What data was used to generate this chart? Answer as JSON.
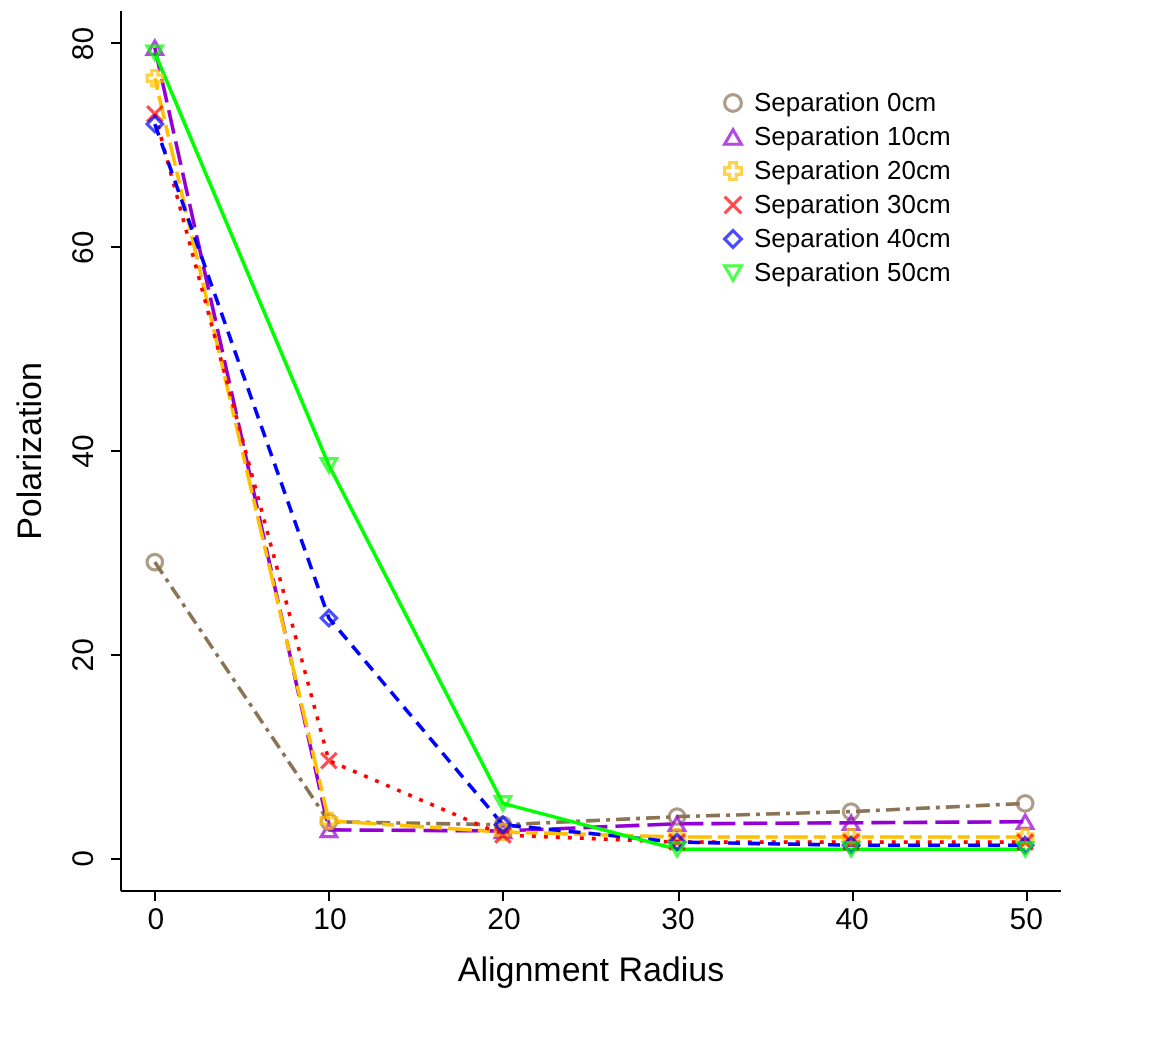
{
  "chart_data": {
    "type": "line",
    "xlabel": "Alignment Radius",
    "ylabel": "Polarization",
    "x": [
      0,
      10,
      20,
      30,
      40,
      50
    ],
    "series": [
      {
        "name": "Separation 0cm",
        "color": "#8b7355",
        "marker": "circle",
        "line_style": "dashdot",
        "values": [
          29,
          3.5,
          3.2,
          4,
          4.5,
          5.3
        ]
      },
      {
        "name": "Separation 10cm",
        "color": "#9400d3",
        "marker": "triangle",
        "line_style": "longdash",
        "values": [
          79.5,
          2.7,
          2.6,
          3.3,
          3.4,
          3.5
        ]
      },
      {
        "name": "Separation 20cm",
        "color": "#ffc000",
        "marker": "plus",
        "line_style": "twodash",
        "values": [
          76.5,
          3.6,
          2.5,
          2,
          2,
          2
        ]
      },
      {
        "name": "Separation 30cm",
        "color": "#ff0000",
        "marker": "x",
        "line_style": "dotted",
        "values": [
          73,
          9.5,
          2.2,
          1.5,
          1.5,
          1.5
        ]
      },
      {
        "name": "Separation 40cm",
        "color": "#0000ff",
        "marker": "diamond",
        "line_style": "dashed",
        "values": [
          72,
          23.5,
          3.2,
          1.5,
          1.2,
          1.2
        ]
      },
      {
        "name": "Separation 50cm",
        "color": "#00ff00",
        "marker": "triangle-down",
        "line_style": "solid",
        "values": [
          79,
          38.5,
          5.3,
          0.8,
          0.8,
          0.8
        ]
      }
    ],
    "xlim": [
      -2,
      52
    ],
    "ylim": [
      -3.2,
      83.2
    ],
    "xticks": [
      0,
      10,
      20,
      30,
      40,
      50
    ],
    "yticks": [
      0,
      20,
      40,
      60,
      80
    ],
    "grid": false,
    "legend": "top right"
  }
}
